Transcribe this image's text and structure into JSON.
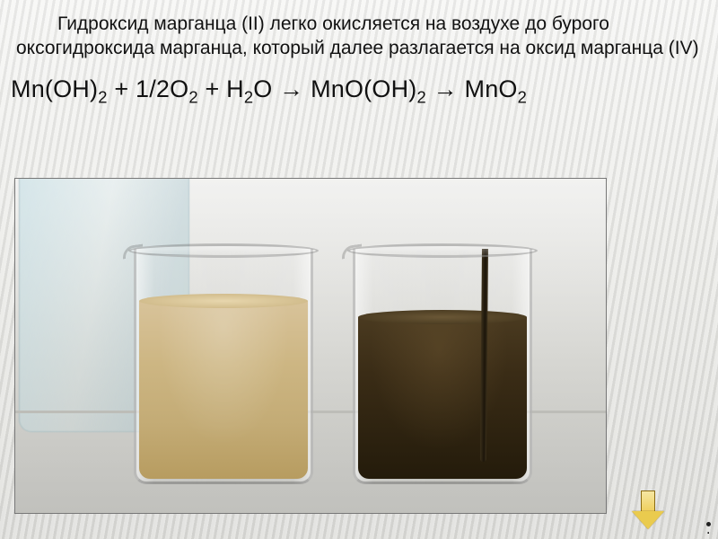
{
  "paragraph": "Гидроксид марганца (II) легко окисляется на воздухе до бурого оксогидроксида марганца, который далее разлагается на оксид марганца (IV)",
  "equation": {
    "r1": "Mn(OH)",
    "r1_sub": "2",
    "plus1": " + 1/2O",
    "o2_sub": "2",
    "plus2": "  +  H",
    "h2_sub": "2",
    "h2o_end": "O ",
    "arrow1": " →   ",
    "p1": "MnO(OH)",
    "p1_sub": "2",
    "arrow2": " →   ",
    "p2": "MnO",
    "p2_sub": "2"
  },
  "photo": {
    "beakers": [
      {
        "name": "mn-oh2-precipitate",
        "color_label": "tan",
        "liquid_color": "#cdb683"
      },
      {
        "name": "mno2-oxidized",
        "color_label": "dark-brown",
        "liquid_color": "#3a2c16"
      }
    ],
    "background_color": "#e0e0dc"
  },
  "colors": {
    "text": "#111111",
    "arrow_fill": "#eacb4e",
    "arrow_border": "#8a6b12"
  },
  "side_dot": "."
}
